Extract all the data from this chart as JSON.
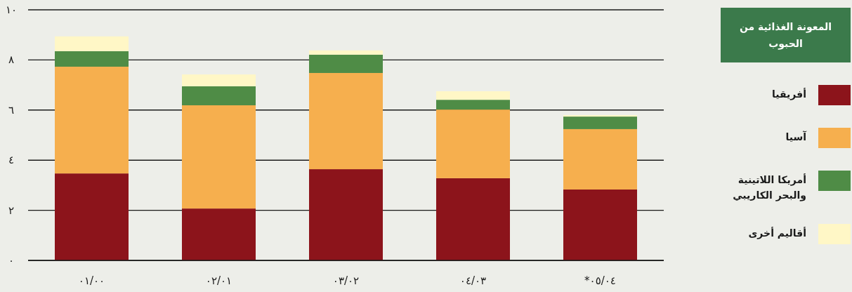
{
  "chart_data": {
    "type": "bar",
    "stacked": true,
    "legend_title": "المعونة الغذائية من الحبوب",
    "categories": [
      "٠١/٠٠",
      "٠٢/٠١",
      "٠٣/٠٢",
      "٠٤/٠٣",
      "*٠٥/٠٤"
    ],
    "series": [
      {
        "name": "أفريقيا",
        "color": "#8c141b",
        "values": [
          3.47,
          2.07,
          3.64,
          3.28,
          2.83
        ]
      },
      {
        "name": "آسيا",
        "color": "#f6af4e",
        "values": [
          4.26,
          4.12,
          3.84,
          2.74,
          2.41
        ]
      },
      {
        "name": "أمريكا اللاتينية والبحر الكاريبي",
        "color": "#4f8c46",
        "values": [
          0.62,
          0.76,
          0.73,
          0.39,
          0.5
        ]
      },
      {
        "name": "أقاليم أخرى",
        "color": "#fff7c6",
        "values": [
          0.59,
          0.47,
          0.17,
          0.34,
          0.06
        ]
      }
    ],
    "ylim": [
      0,
      10
    ],
    "yticks": [
      {
        "value": 0,
        "label": "٠"
      },
      {
        "value": 2,
        "label": "٢"
      },
      {
        "value": 4,
        "label": "٤"
      },
      {
        "value": 6,
        "label": "٦"
      },
      {
        "value": 8,
        "label": "٨"
      },
      {
        "value": 10,
        "label": "١٠"
      }
    ],
    "grid": "y",
    "legend": "right"
  }
}
